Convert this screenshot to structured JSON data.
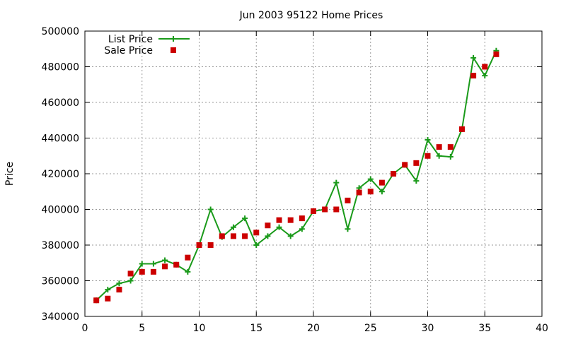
{
  "chart_data": {
    "type": "line",
    "title": "Jun 2003 95122 Home Prices",
    "xlabel": "",
    "ylabel": "Price",
    "xlim": [
      0,
      40
    ],
    "ylim": [
      340000,
      500000
    ],
    "x_ticks": [
      0,
      5,
      10,
      15,
      20,
      25,
      30,
      35,
      40
    ],
    "y_ticks": [
      340000,
      360000,
      380000,
      400000,
      420000,
      440000,
      460000,
      480000,
      500000
    ],
    "grid": true,
    "legend_position": "top-left",
    "series": [
      {
        "name": "List Price",
        "style": "line+cross",
        "color": "#1a9a1a",
        "x": [
          1,
          2,
          3,
          4,
          5,
          6,
          7,
          8,
          9,
          10,
          11,
          12,
          13,
          14,
          15,
          16,
          17,
          18,
          19,
          20,
          21,
          22,
          23,
          24,
          25,
          26,
          27,
          28,
          29,
          30,
          31,
          32,
          33,
          34,
          35,
          36
        ],
        "values": [
          349000,
          355000,
          358500,
          360000,
          369500,
          369500,
          371500,
          369000,
          365000,
          380000,
          400000,
          384500,
          390000,
          395000,
          380000,
          385000,
          390000,
          385000,
          389000,
          399000,
          400000,
          415000,
          389000,
          412000,
          417000,
          410000,
          420000,
          425000,
          416000,
          439000,
          430000,
          429500,
          445000,
          485000,
          475000,
          489000
        ]
      },
      {
        "name": "Sale Price",
        "style": "square",
        "color": "#cc0000",
        "x": [
          1,
          2,
          3,
          4,
          5,
          6,
          7,
          8,
          9,
          10,
          11,
          12,
          13,
          14,
          15,
          16,
          17,
          18,
          19,
          20,
          21,
          22,
          23,
          24,
          25,
          26,
          27,
          28,
          29,
          30,
          31,
          32,
          33,
          34,
          35,
          36
        ],
        "values": [
          349000,
          350000,
          355000,
          364000,
          365000,
          365000,
          368000,
          369000,
          373000,
          380000,
          380000,
          385000,
          385000,
          385000,
          387000,
          391000,
          394000,
          394000,
          395000,
          399000,
          400000,
          400000,
          405000,
          409500,
          410000,
          415000,
          420000,
          425000,
          426000,
          430000,
          435000,
          435000,
          445000,
          475000,
          480000,
          487000
        ]
      }
    ]
  }
}
